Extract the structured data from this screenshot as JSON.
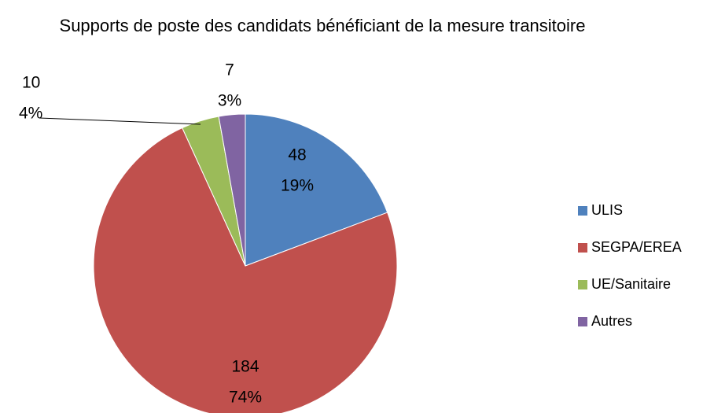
{
  "chart_data": {
    "type": "pie",
    "title": "Supports de poste des candidats bénéficiant de la mesure transitoire",
    "categories": [
      "ULIS",
      "SEGPA/EREA",
      "UE/Sanitaire",
      "Autres"
    ],
    "values": [
      48,
      184,
      10,
      7
    ],
    "percent_labels": [
      "19%",
      "74%",
      "4%",
      "3%"
    ],
    "colors": [
      "#4f81bd",
      "#c0504d",
      "#9bbb59",
      "#8064a2"
    ],
    "legend": "right"
  }
}
